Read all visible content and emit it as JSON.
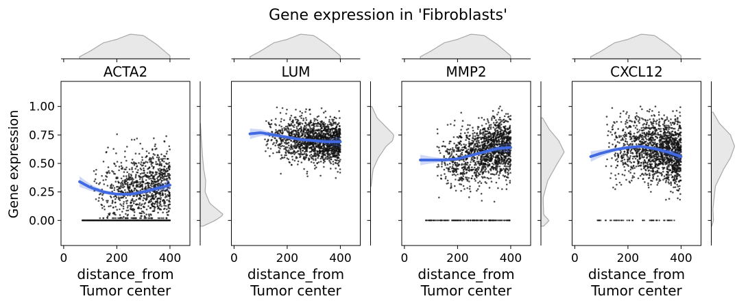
{
  "figure": {
    "title": "Gene expression in 'Fibroblasts'"
  },
  "chart_data": [
    {
      "type": "scatter",
      "title": "ACTA2",
      "xlabel": "distance_from\nTumor center",
      "ylabel": "Gene expression",
      "xlim": [
        -10,
        475
      ],
      "ylim": [
        -0.22,
        1.22
      ],
      "xticks": [
        0,
        200,
        400
      ],
      "yticks": [
        0.0,
        0.25,
        0.5,
        0.75,
        1.0
      ],
      "ytick_labels": [
        "0.00",
        "0.25",
        "0.50",
        "0.75",
        "1.00"
      ],
      "x_range": [
        50,
        400
      ],
      "scatter_summary": {
        "n_points": 1600,
        "mean": 0.38,
        "sd": 0.15,
        "zero_fraction": 0.4
      },
      "trend": {
        "x": [
          60,
          100,
          150,
          200,
          250,
          300,
          350,
          400
        ],
        "y": [
          0.34,
          0.29,
          0.25,
          0.23,
          0.23,
          0.25,
          0.28,
          0.31
        ]
      },
      "x_marginal_density": {
        "x": [
          60,
          100,
          150,
          200,
          250,
          300,
          350,
          400
        ],
        "density": [
          0.08,
          0.3,
          0.62,
          0.75,
          0.95,
          0.9,
          0.55,
          0.12
        ]
      },
      "y_marginal_density": {
        "y": [
          -0.05,
          0.0,
          0.05,
          0.15,
          0.25,
          0.35,
          0.45,
          0.55,
          0.65,
          0.75,
          0.85
        ],
        "density": [
          0.1,
          0.55,
          0.85,
          0.35,
          0.18,
          0.2,
          0.13,
          0.09,
          0.06,
          0.03,
          0.01
        ]
      }
    },
    {
      "type": "scatter",
      "title": "LUM",
      "xlabel": "distance_from\nTumor center",
      "xlim": [
        -10,
        475
      ],
      "ylim": [
        -0.22,
        1.22
      ],
      "xticks": [
        0,
        200,
        400
      ],
      "x_range": [
        60,
        400
      ],
      "scatter_summary": {
        "n_points": 1500,
        "mean": 0.72,
        "sd": 0.1,
        "zero_fraction": 0.0
      },
      "trend": {
        "x": [
          60,
          100,
          150,
          200,
          250,
          300,
          350,
          400
        ],
        "y": [
          0.76,
          0.77,
          0.75,
          0.73,
          0.71,
          0.7,
          0.69,
          0.69
        ]
      },
      "x_marginal_density": {
        "x": [
          60,
          100,
          150,
          200,
          250,
          300,
          350,
          400
        ],
        "density": [
          0.08,
          0.3,
          0.62,
          0.75,
          0.95,
          0.9,
          0.55,
          0.12
        ]
      },
      "y_marginal_density": {
        "y": [
          0.3,
          0.45,
          0.55,
          0.65,
          0.7,
          0.75,
          0.82,
          0.9,
          1.0
        ],
        "density": [
          0.02,
          0.1,
          0.3,
          0.6,
          0.85,
          0.9,
          0.6,
          0.25,
          0.05
        ]
      }
    },
    {
      "type": "scatter",
      "title": "MMP2",
      "xlabel": "distance_from\nTumor center",
      "xlim": [
        -10,
        475
      ],
      "ylim": [
        -0.22,
        1.22
      ],
      "xticks": [
        0,
        200,
        400
      ],
      "x_range": [
        60,
        400
      ],
      "scatter_summary": {
        "n_points": 1600,
        "mean": 0.6,
        "sd": 0.13,
        "zero_fraction": 0.08
      },
      "trend": {
        "x": [
          60,
          100,
          150,
          200,
          250,
          300,
          350,
          400
        ],
        "y": [
          0.53,
          0.53,
          0.53,
          0.54,
          0.57,
          0.6,
          0.63,
          0.64
        ]
      },
      "x_marginal_density": {
        "x": [
          60,
          100,
          150,
          200,
          250,
          300,
          350,
          400
        ],
        "density": [
          0.08,
          0.3,
          0.62,
          0.75,
          0.95,
          0.9,
          0.55,
          0.12
        ]
      },
      "y_marginal_density": {
        "y": [
          -0.05,
          0.0,
          0.05,
          0.2,
          0.35,
          0.5,
          0.6,
          0.7,
          0.8,
          0.9
        ],
        "density": [
          0.1,
          0.3,
          0.1,
          0.08,
          0.25,
          0.6,
          0.85,
          0.65,
          0.3,
          0.06
        ]
      }
    },
    {
      "type": "scatter",
      "title": "CXCL12",
      "xlabel": "distance_from\nTumor center",
      "xlim": [
        -10,
        475
      ],
      "ylim": [
        -0.22,
        1.22
      ],
      "xticks": [
        0,
        200,
        400
      ],
      "x_range": [
        60,
        400
      ],
      "scatter_summary": {
        "n_points": 1600,
        "mean": 0.6,
        "sd": 0.14,
        "zero_fraction": 0.03
      },
      "trend": {
        "x": [
          60,
          100,
          150,
          200,
          250,
          300,
          350,
          400
        ],
        "y": [
          0.56,
          0.59,
          0.62,
          0.64,
          0.65,
          0.63,
          0.6,
          0.56
        ]
      },
      "x_marginal_density": {
        "x": [
          60,
          100,
          150,
          200,
          250,
          300,
          350,
          400
        ],
        "density": [
          0.08,
          0.3,
          0.62,
          0.75,
          0.95,
          0.9,
          0.55,
          0.12
        ]
      },
      "y_marginal_density": {
        "y": [
          -0.05,
          0.0,
          0.1,
          0.3,
          0.45,
          0.55,
          0.65,
          0.75,
          0.85,
          0.95
        ],
        "density": [
          0.02,
          0.08,
          0.06,
          0.15,
          0.45,
          0.7,
          0.85,
          0.7,
          0.3,
          0.06
        ]
      }
    }
  ]
}
